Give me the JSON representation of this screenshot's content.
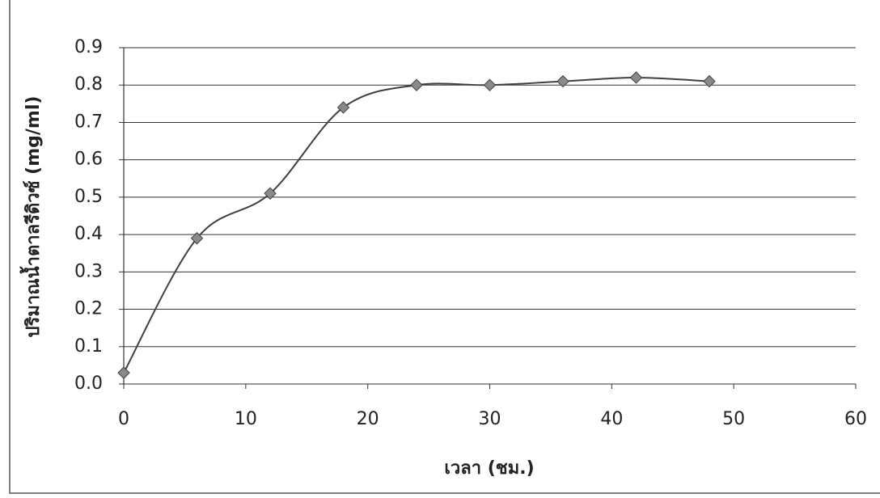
{
  "chart_data": {
    "type": "line",
    "x_label": "เวลา (ชม.)",
    "y_label": "ปริมาณน้ำตาลรีดิวซ์ (mg/ml)",
    "x": [
      0,
      6,
      12,
      18,
      24,
      30,
      36,
      42,
      48
    ],
    "series": [
      {
        "color": "#3f3f3f",
        "marker_color": "#8a8a8a",
        "values": [
          0.03,
          0.39,
          0.51,
          0.74,
          0.8,
          0.8,
          0.81,
          0.82,
          0.81
        ]
      }
    ],
    "xlim": [
      0,
      60
    ],
    "xticks": [
      0,
      10,
      20,
      30,
      40,
      50,
      60
    ],
    "ylim": [
      0,
      0.9
    ],
    "yticks": [
      {
        "value": 0,
        "label": "0.0"
      },
      0.1,
      0.2,
      0.3,
      0.4,
      0.5,
      0.6,
      0.7,
      0.8,
      0.9
    ],
    "grid": true,
    "smooth": true
  }
}
